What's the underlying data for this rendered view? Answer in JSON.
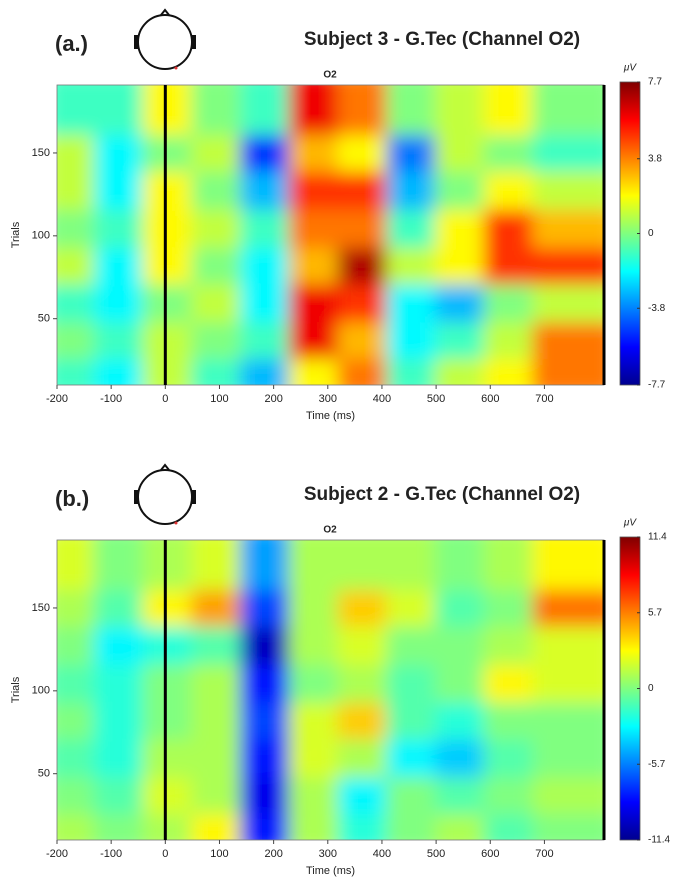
{
  "chart_data": [
    {
      "type": "heatmap",
      "panel_label": "(a.)",
      "title": "Subject 3 - G.Tec (Channel O2)",
      "subtitle": "O2",
      "x_label": "Time (ms)",
      "y_label": "Trials",
      "colorbar_label": "μV",
      "xlim": [
        -200,
        810
      ],
      "xticks": [
        -200,
        -100,
        0,
        100,
        200,
        300,
        400,
        500,
        600,
        700
      ],
      "ylim": [
        10,
        191
      ],
      "yticks": [
        50,
        100,
        150
      ],
      "event_line": 0,
      "clim": [
        -7.7,
        7.7
      ],
      "cticks": [
        -7.7,
        -3.8,
        0,
        3.8,
        7.7
      ],
      "x_bins": [
        -200,
        -110,
        -20,
        70,
        160,
        250,
        340,
        430,
        520,
        610,
        700,
        810
      ],
      "y_bins": [
        10,
        33,
        55,
        78,
        100,
        123,
        146,
        168,
        191
      ],
      "z": [
        [
          -1,
          -2,
          1,
          -1,
          -3,
          2,
          4,
          -1,
          1,
          2,
          4
        ],
        [
          0,
          -1,
          1,
          0,
          -1,
          6,
          3,
          -2,
          -1,
          1,
          4
        ],
        [
          -1,
          -2,
          0,
          1,
          -2,
          6,
          5,
          -2,
          -3,
          0,
          1
        ],
        [
          1,
          -2,
          2,
          0,
          -2,
          3,
          7,
          1,
          2,
          5,
          5
        ],
        [
          0,
          -1,
          2,
          1,
          -1,
          4,
          4,
          -1,
          2,
          5,
          3
        ],
        [
          1,
          -2,
          2,
          0,
          -3,
          5,
          5,
          -3,
          0,
          2,
          1
        ],
        [
          1,
          -2,
          0,
          1,
          -5,
          3,
          2,
          -4,
          1,
          0,
          -1
        ],
        [
          -1,
          -1,
          2,
          0,
          -1,
          6,
          4,
          0,
          1,
          2,
          0
        ]
      ]
    },
    {
      "type": "heatmap",
      "panel_label": "(b.)",
      "title": "Subject 2 - G.Tec (Channel O2)",
      "subtitle": "O2",
      "x_label": "Time (ms)",
      "y_label": "Trials",
      "colorbar_label": "μV",
      "xlim": [
        -200,
        810
      ],
      "xticks": [
        -200,
        -100,
        0,
        100,
        200,
        300,
        400,
        500,
        600,
        700
      ],
      "ylim": [
        10,
        191
      ],
      "yticks": [
        50,
        100,
        150
      ],
      "event_line": 0,
      "clim": [
        -11.4,
        11.4
      ],
      "cticks": [
        -11.4,
        -5.7,
        0,
        5.7,
        11.4
      ],
      "x_bins": [
        -200,
        -110,
        -20,
        70,
        160,
        250,
        340,
        430,
        520,
        610,
        700,
        810
      ],
      "y_bins": [
        10,
        33,
        55,
        78,
        100,
        123,
        146,
        168,
        191
      ],
      "z": [
        [
          1,
          0,
          1,
          3,
          -8,
          1,
          -2,
          0,
          1,
          -1,
          0
        ],
        [
          0,
          -1,
          2,
          1,
          -9,
          1,
          -3,
          0,
          -1,
          0,
          1
        ],
        [
          -1,
          -2,
          1,
          1,
          -8,
          2,
          1,
          -3,
          -4,
          -1,
          0
        ],
        [
          0,
          -2,
          0,
          1,
          -7,
          2,
          4,
          -1,
          -2,
          0,
          0
        ],
        [
          -1,
          -2,
          0,
          1,
          -8,
          0,
          1,
          -1,
          0,
          3,
          2
        ],
        [
          0,
          -3,
          -2,
          -1,
          -10,
          1,
          2,
          0,
          0,
          1,
          2
        ],
        [
          1,
          -1,
          3,
          5,
          -7,
          1,
          4,
          2,
          -1,
          0,
          6
        ],
        [
          2,
          0,
          1,
          2,
          -5,
          1,
          1,
          1,
          0,
          1,
          3
        ]
      ]
    }
  ]
}
